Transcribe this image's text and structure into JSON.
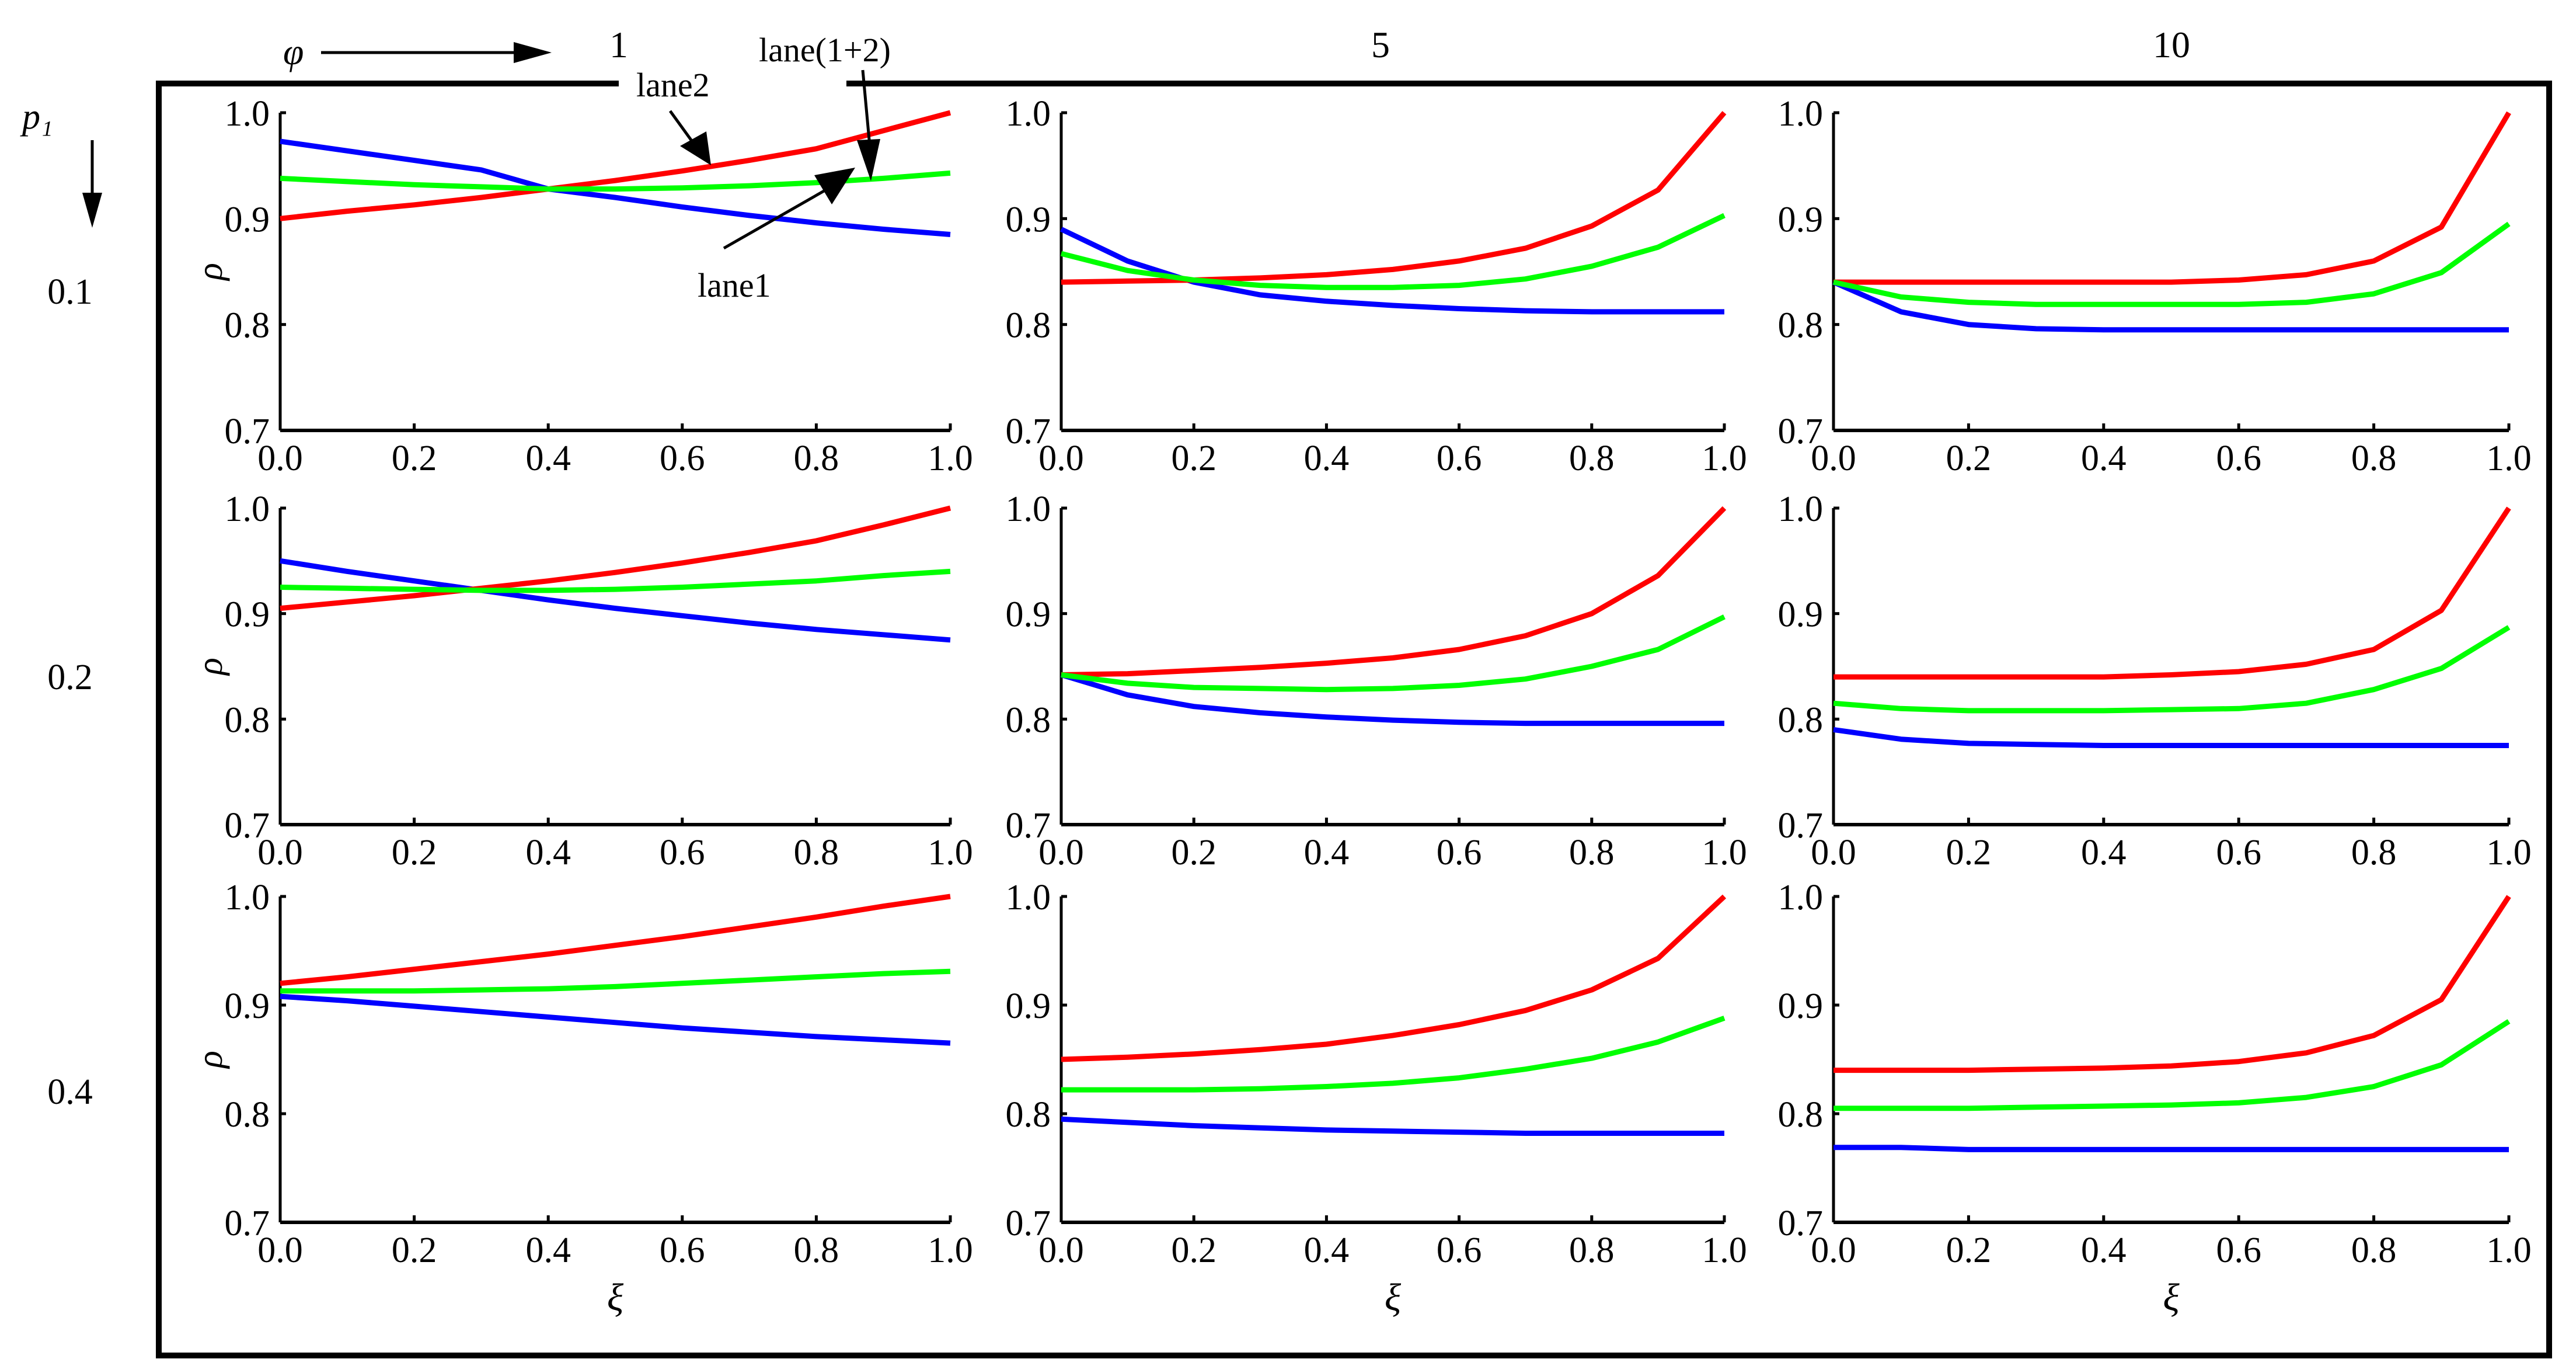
{
  "figure": {
    "column_param_label": "φ",
    "row_param_label": "p₁",
    "column_values": [
      "1",
      "5",
      "10"
    ],
    "row_values": [
      "0.1",
      "0.2",
      "0.4"
    ],
    "annotations": [
      "lane2",
      "lane(1+2)",
      "lane1"
    ]
  },
  "chart_data": {
    "type": "line",
    "layout": "grid 3x3",
    "title": "",
    "xlabel": "ξ",
    "ylabel": "ρ",
    "xlim": [
      0.0,
      1.0
    ],
    "ylim": [
      0.7,
      1.0
    ],
    "xticks": [
      "0.0",
      "0.2",
      "0.4",
      "0.6",
      "0.8",
      "1.0"
    ],
    "yticks": [
      "0.7",
      "0.8",
      "0.9",
      "1.0"
    ],
    "grid": false,
    "legend": "annotation arrows in top-left panel",
    "series_meta": [
      {
        "key": "lane1",
        "name": "lane1",
        "color": "#0000ff"
      },
      {
        "key": "lane2",
        "name": "lane2",
        "color": "#ff0000"
      },
      {
        "key": "lane12",
        "name": "lane(1+2)",
        "color": "#00ff00"
      }
    ],
    "x": [
      0.0,
      0.1,
      0.2,
      0.3,
      0.4,
      0.5,
      0.6,
      0.7,
      0.8,
      0.9,
      1.0
    ],
    "panels": [
      {
        "p1": "0.1",
        "phi": "1",
        "lane1": [
          0.973,
          0.964,
          0.955,
          0.946,
          0.928,
          0.92,
          0.911,
          0.903,
          0.896,
          0.89,
          0.885
        ],
        "lane2": [
          0.9,
          0.907,
          0.913,
          0.92,
          0.928,
          0.936,
          0.945,
          0.955,
          0.966,
          0.983,
          1.0
        ],
        "lane12": [
          0.938,
          0.935,
          0.932,
          0.93,
          0.928,
          0.928,
          0.929,
          0.931,
          0.934,
          0.938,
          0.943
        ]
      },
      {
        "p1": "0.1",
        "phi": "5",
        "lane1": [
          0.89,
          0.86,
          0.84,
          0.828,
          0.822,
          0.818,
          0.815,
          0.813,
          0.812,
          0.812,
          0.812
        ],
        "lane2": [
          0.84,
          0.841,
          0.842,
          0.844,
          0.847,
          0.852,
          0.86,
          0.872,
          0.893,
          0.927,
          1.0
        ],
        "lane12": [
          0.867,
          0.851,
          0.842,
          0.837,
          0.835,
          0.835,
          0.837,
          0.843,
          0.855,
          0.873,
          0.903
        ]
      },
      {
        "p1": "0.1",
        "phi": "10",
        "lane1": [
          0.84,
          0.812,
          0.8,
          0.796,
          0.795,
          0.795,
          0.795,
          0.795,
          0.795,
          0.795,
          0.795
        ],
        "lane2": [
          0.84,
          0.84,
          0.84,
          0.84,
          0.84,
          0.84,
          0.842,
          0.847,
          0.86,
          0.892,
          1.0
        ],
        "lane12": [
          0.84,
          0.826,
          0.821,
          0.819,
          0.819,
          0.819,
          0.819,
          0.821,
          0.829,
          0.849,
          0.895
        ]
      },
      {
        "p1": "0.2",
        "phi": "1",
        "lane1": [
          0.95,
          0.94,
          0.931,
          0.922,
          0.913,
          0.905,
          0.898,
          0.891,
          0.885,
          0.88,
          0.875
        ],
        "lane2": [
          0.905,
          0.911,
          0.917,
          0.924,
          0.931,
          0.939,
          0.948,
          0.958,
          0.969,
          0.984,
          1.0
        ],
        "lane12": [
          0.925,
          0.924,
          0.923,
          0.922,
          0.922,
          0.923,
          0.925,
          0.928,
          0.931,
          0.936,
          0.94
        ]
      },
      {
        "p1": "0.2",
        "phi": "5",
        "lane1": [
          0.842,
          0.823,
          0.812,
          0.806,
          0.802,
          0.799,
          0.797,
          0.796,
          0.796,
          0.796,
          0.796
        ],
        "lane2": [
          0.842,
          0.843,
          0.846,
          0.849,
          0.853,
          0.858,
          0.866,
          0.879,
          0.9,
          0.936,
          1.0
        ],
        "lane12": [
          0.842,
          0.834,
          0.83,
          0.829,
          0.828,
          0.829,
          0.832,
          0.838,
          0.85,
          0.866,
          0.897
        ]
      },
      {
        "p1": "0.2",
        "phi": "10",
        "lane1": [
          0.79,
          0.781,
          0.777,
          0.776,
          0.775,
          0.775,
          0.775,
          0.775,
          0.775,
          0.775,
          0.775
        ],
        "lane2": [
          0.84,
          0.84,
          0.84,
          0.84,
          0.84,
          0.842,
          0.845,
          0.852,
          0.866,
          0.903,
          1.0
        ],
        "lane12": [
          0.815,
          0.81,
          0.808,
          0.808,
          0.808,
          0.809,
          0.81,
          0.815,
          0.828,
          0.848,
          0.887
        ]
      },
      {
        "p1": "0.4",
        "phi": "1",
        "lane1": [
          0.908,
          0.904,
          0.899,
          0.894,
          0.889,
          0.884,
          0.879,
          0.875,
          0.871,
          0.868,
          0.865
        ],
        "lane2": [
          0.92,
          0.926,
          0.933,
          0.94,
          0.947,
          0.955,
          0.963,
          0.972,
          0.981,
          0.991,
          1.0
        ],
        "lane12": [
          0.913,
          0.913,
          0.913,
          0.914,
          0.915,
          0.917,
          0.92,
          0.923,
          0.926,
          0.929,
          0.931
        ]
      },
      {
        "p1": "0.4",
        "phi": "5",
        "lane1": [
          0.795,
          0.792,
          0.789,
          0.787,
          0.785,
          0.784,
          0.783,
          0.782,
          0.782,
          0.782,
          0.782
        ],
        "lane2": [
          0.85,
          0.852,
          0.855,
          0.859,
          0.864,
          0.872,
          0.882,
          0.895,
          0.914,
          0.943,
          1.0
        ],
        "lane12": [
          0.822,
          0.822,
          0.822,
          0.823,
          0.825,
          0.828,
          0.833,
          0.841,
          0.851,
          0.866,
          0.888
        ]
      },
      {
        "p1": "0.4",
        "phi": "10",
        "lane1": [
          0.769,
          0.769,
          0.767,
          0.767,
          0.767,
          0.767,
          0.767,
          0.767,
          0.767,
          0.767,
          0.767
        ],
        "lane2": [
          0.84,
          0.84,
          0.84,
          0.841,
          0.842,
          0.844,
          0.848,
          0.856,
          0.872,
          0.905,
          1.0
        ],
        "lane12": [
          0.805,
          0.805,
          0.805,
          0.806,
          0.807,
          0.808,
          0.81,
          0.815,
          0.825,
          0.845,
          0.885
        ]
      }
    ]
  }
}
